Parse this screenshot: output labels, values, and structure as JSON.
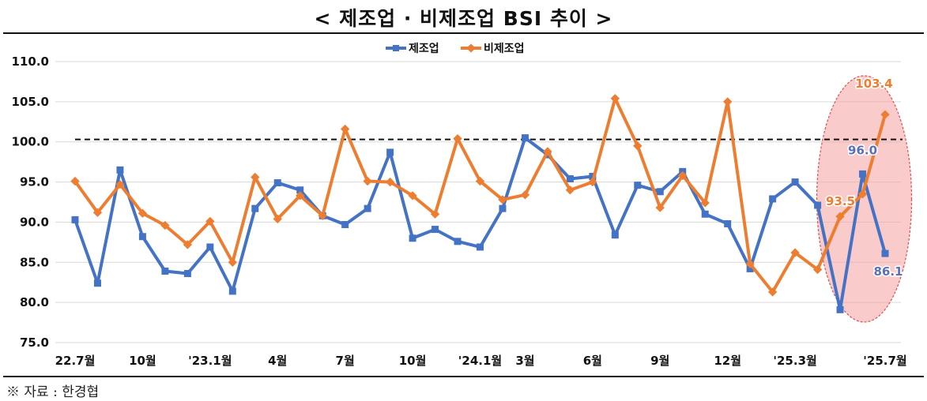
{
  "title": "< 제조업 · 비제조업 BSI 추이 >",
  "source": "※ 자료 : 한경협",
  "colors": {
    "manufacturing": "#4472C4",
    "non_manufacturing": "#ED7D31",
    "highlight": "#F4A0A0"
  },
  "chart_data": {
    "type": "line",
    "title": "< 제조업 · 비제조업 BSI 추이 >",
    "xlabel": "",
    "ylabel": "",
    "ylim": [
      75,
      110
    ],
    "y_ticks": [
      "110.0",
      "105.0",
      "100.0",
      "95.0",
      "90.0",
      "85.0",
      "80.0",
      "75.0"
    ],
    "x_tick_labels": [
      {
        "index": 0,
        "label": "22.7월"
      },
      {
        "index": 3,
        "label": "10월"
      },
      {
        "index": 6,
        "label": "'23.1월"
      },
      {
        "index": 9,
        "label": "4월"
      },
      {
        "index": 12,
        "label": "7월"
      },
      {
        "index": 15,
        "label": "10월"
      },
      {
        "index": 18,
        "label": "'24.1월"
      },
      {
        "index": 20,
        "label": "3월"
      },
      {
        "index": 23,
        "label": "6월"
      },
      {
        "index": 26,
        "label": "9월"
      },
      {
        "index": 29,
        "label": "12월"
      },
      {
        "index": 32,
        "label": "'25.3월"
      },
      {
        "index": 36,
        "label": "'25.7월"
      }
    ],
    "reference_line": 100.3,
    "legend_position": "top-center",
    "grid": "horizontal",
    "series": [
      {
        "name": "제조업",
        "values": [
          90.3,
          82.4,
          96.5,
          88.2,
          83.9,
          83.6,
          86.9,
          81.4,
          91.7,
          94.9,
          94.0,
          90.8,
          89.7,
          91.7,
          98.7,
          88.0,
          89.1,
          87.6,
          86.9,
          91.7,
          100.5,
          98.4,
          95.4,
          95.7,
          88.4,
          94.6,
          93.8,
          96.3,
          91.0,
          89.8,
          84.2,
          92.9,
          95.0,
          92.1,
          79.1,
          96.0,
          86.1
        ]
      },
      {
        "name": "비제조업",
        "values": [
          95.1,
          91.2,
          94.7,
          91.1,
          89.6,
          87.2,
          90.1,
          85.0,
          95.6,
          90.4,
          93.3,
          90.8,
          101.6,
          95.1,
          95.0,
          93.3,
          91.0,
          100.4,
          95.1,
          92.8,
          93.4,
          98.8,
          94.0,
          95.0,
          105.4,
          99.5,
          91.8,
          95.8,
          92.4,
          105.0,
          84.8,
          81.3,
          86.2,
          84.1,
          90.7,
          93.5,
          103.4
        ]
      }
    ],
    "data_labels": [
      {
        "series": "제조업",
        "index": 35,
        "text": "96.0"
      },
      {
        "series": "제조업",
        "index": 36,
        "text": "86.1"
      },
      {
        "series": "비제조업",
        "index": 35,
        "text": "93.5"
      },
      {
        "series": "비제조업",
        "index": 36,
        "text": "103.4"
      }
    ],
    "highlight": {
      "from_index": 34,
      "to_index": 36,
      "shape": "ellipse"
    }
  }
}
